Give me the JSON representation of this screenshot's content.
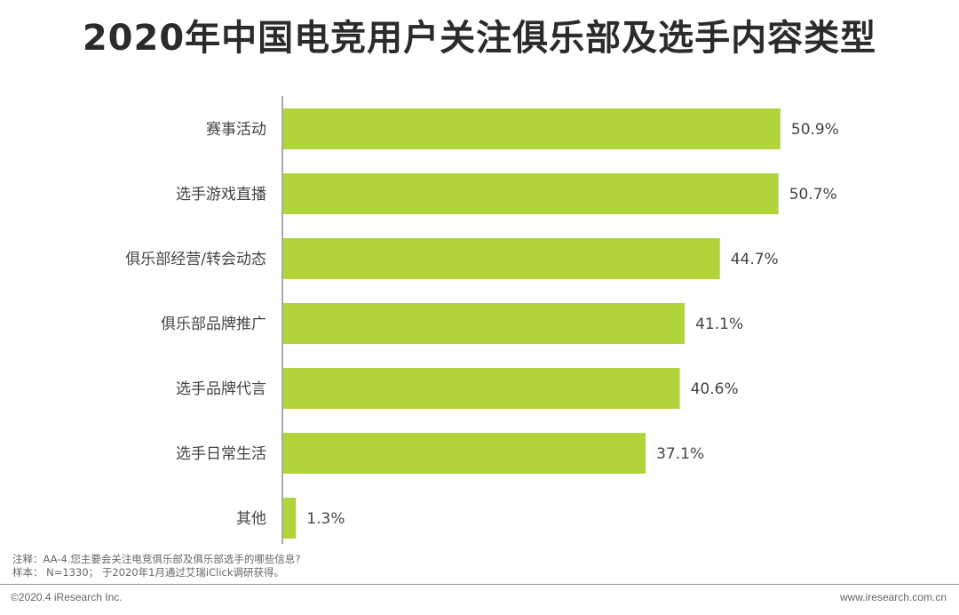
{
  "title": "2020年中国电竞用户关注俱乐部及选手内容类型",
  "chart_data": {
    "type": "bar",
    "orientation": "horizontal",
    "categories": [
      "赛事活动",
      "选手游戏直播",
      "俱乐部经营/转会动态",
      "俱乐部品牌推广",
      "选手品牌代言",
      "选手日常生活",
      "其他"
    ],
    "values": [
      50.9,
      50.7,
      44.7,
      41.1,
      40.6,
      37.1,
      1.3
    ],
    "value_labels": [
      "50.9%",
      "50.7%",
      "44.7%",
      "41.1%",
      "40.6%",
      "37.1%",
      "1.3%"
    ],
    "unit": "%",
    "xlim": [
      0,
      60
    ],
    "grid": false,
    "legend": "none",
    "bar_color": "#b0d43a",
    "axis_color": "#555555"
  },
  "notes": {
    "line1": "注释：AA-4.您主要会关注电竞俱乐部及俱乐部选手的哪些信息?",
    "line2": "样本： N=1330； 于2020年1月通过艾瑞iClick调研获得。"
  },
  "footer": {
    "left": "©2020.4 iResearch Inc.",
    "right": "www.iresearch.com.cn"
  }
}
